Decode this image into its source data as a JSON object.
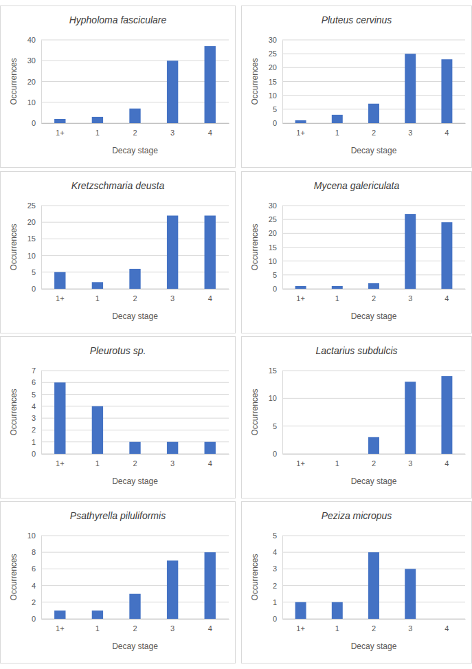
{
  "chart_data": [
    {
      "type": "bar",
      "title": "Hypholoma fasciculare",
      "categories": [
        "1+",
        "1",
        "2",
        "3",
        "4"
      ],
      "values": [
        2,
        3,
        7,
        30,
        37
      ],
      "color": "#4472c4",
      "ylim": [
        0,
        40
      ],
      "yticks": [
        0,
        10,
        20,
        30,
        40
      ],
      "grid": true,
      "x_label": "Decay stage",
      "y_label": "Occurrences"
    },
    {
      "type": "bar",
      "title": "Pluteus cervinus",
      "categories": [
        "1+",
        "1",
        "2",
        "3",
        "4"
      ],
      "values": [
        1,
        3,
        7,
        25,
        23
      ],
      "color": "#4472c4",
      "ylim": [
        0,
        30
      ],
      "yticks": [
        0,
        5,
        10,
        15,
        20,
        25,
        30
      ],
      "grid": true,
      "x_label": "Decay stage",
      "y_label": "Occurrences"
    },
    {
      "type": "bar",
      "title": "Kretzschmaria deusta",
      "categories": [
        "1+",
        "1",
        "2",
        "3",
        "4"
      ],
      "values": [
        5,
        2,
        6,
        22,
        22
      ],
      "color": "#4472c4",
      "ylim": [
        0,
        25
      ],
      "yticks": [
        0,
        5,
        10,
        15,
        20,
        25
      ],
      "grid": true,
      "x_label": "Decay stage",
      "y_label": "Occurrences"
    },
    {
      "type": "bar",
      "title": "Mycena galericulata",
      "categories": [
        "1+",
        "1",
        "2",
        "3",
        "4"
      ],
      "values": [
        1,
        1,
        2,
        27,
        24
      ],
      "color": "#4472c4",
      "ylim": [
        0,
        30
      ],
      "yticks": [
        0,
        5,
        10,
        15,
        20,
        25,
        30
      ],
      "grid": true,
      "x_label": "Decay stage",
      "y_label": "Occurrences"
    },
    {
      "type": "bar",
      "title": "Pleurotus sp.",
      "categories": [
        "1+",
        "1",
        "2",
        "3",
        "4"
      ],
      "values": [
        6,
        4,
        1,
        1,
        1
      ],
      "color": "#4472c4",
      "ylim": [
        0,
        7
      ],
      "yticks": [
        0,
        1,
        2,
        3,
        4,
        5,
        6,
        7
      ],
      "grid": true,
      "x_label": "Decay stage",
      "y_label": "Occurrences"
    },
    {
      "type": "bar",
      "title": "Lactarius subdulcis",
      "categories": [
        "1+",
        "1",
        "2",
        "3",
        "4"
      ],
      "values": [
        0,
        0,
        3,
        13,
        14
      ],
      "color": "#4472c4",
      "ylim": [
        0,
        15
      ],
      "yticks": [
        0,
        5,
        10,
        15
      ],
      "grid": true,
      "x_label": "Decay stage",
      "y_label": "Occurrences"
    },
    {
      "type": "bar",
      "title": "Psathyrella piluliformis",
      "categories": [
        "1+",
        "1",
        "2",
        "3",
        "4"
      ],
      "values": [
        1,
        1,
        3,
        7,
        8
      ],
      "color": "#4472c4",
      "ylim": [
        0,
        10
      ],
      "yticks": [
        0,
        2,
        4,
        6,
        8,
        10
      ],
      "grid": true,
      "x_label": "Decay stage",
      "y_label": "Occurrences"
    },
    {
      "type": "bar",
      "title": "Peziza micropus",
      "categories": [
        "1+",
        "1",
        "2",
        "3",
        "4"
      ],
      "values": [
        1,
        1,
        4,
        3,
        0
      ],
      "color": "#4472c4",
      "ylim": [
        0,
        5
      ],
      "yticks": [
        0,
        1,
        2,
        3,
        4,
        5
      ],
      "grid": true,
      "x_label": "Decay stage",
      "y_label": "Occurrences"
    }
  ]
}
